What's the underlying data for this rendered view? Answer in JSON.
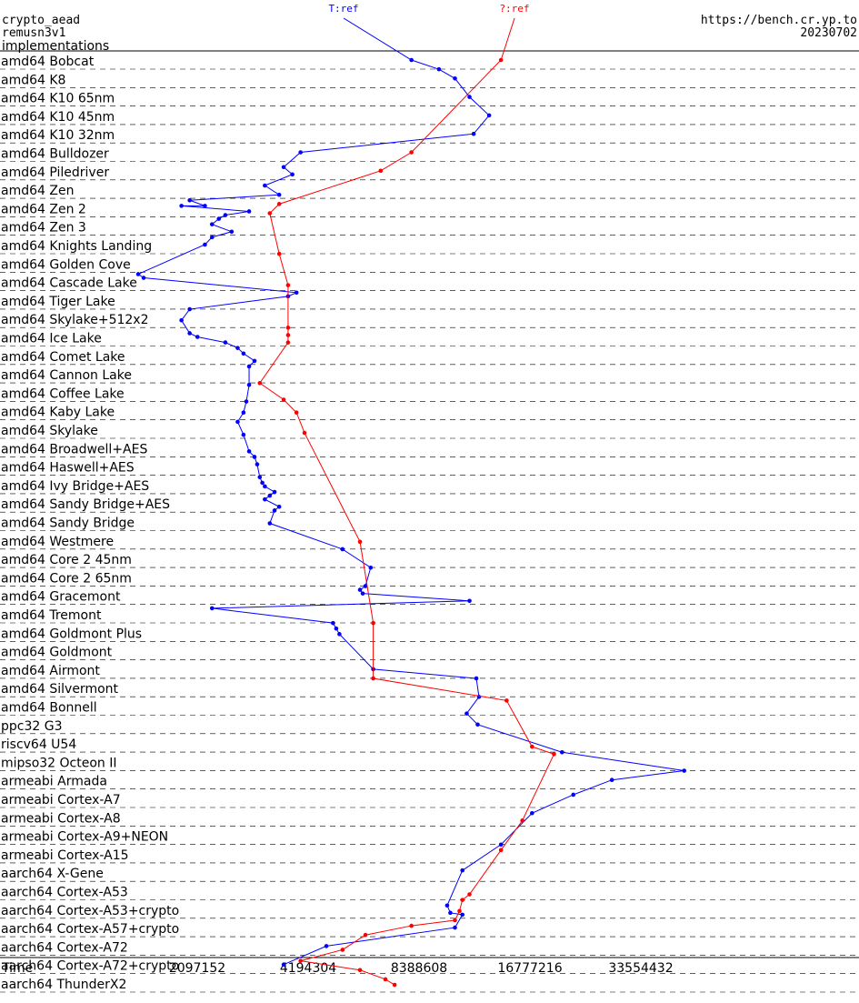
{
  "header": {
    "line1": "crypto_aead",
    "line2": "remusn3v1",
    "line3": "implementations",
    "url": "https://bench.cr.yp.to",
    "date": "20230702"
  },
  "chart_data": {
    "type": "line",
    "xlabel": "Time",
    "xscale": "log2",
    "xlim": [
      1048576,
      67108864
    ],
    "xticks": [
      2097152,
      4194304,
      8388608,
      16777216,
      33554432
    ],
    "series": [
      {
        "name": "T:ref",
        "color": "#0000ff"
      },
      {
        "name": "?:ref",
        "color": "#ff0000"
      }
    ],
    "categories": [
      "amd64 Bobcat",
      "amd64 K8",
      "amd64 K10 65nm",
      "amd64 K10 45nm",
      "amd64 K10 32nm",
      "amd64 Bulldozer",
      "amd64 Piledriver",
      "amd64 Zen",
      "amd64 Zen 2",
      "amd64 Zen 3",
      "amd64 Knights Landing",
      "amd64 Golden Cove",
      "amd64 Cascade Lake",
      "amd64 Tiger Lake",
      "amd64 Skylake+512x2",
      "amd64 Ice Lake",
      "amd64 Comet Lake",
      "amd64 Cannon Lake",
      "amd64 Coffee Lake",
      "amd64 Kaby Lake",
      "amd64 Skylake",
      "amd64 Broadwell+AES",
      "amd64 Haswell+AES",
      "amd64 Ivy Bridge+AES",
      "amd64 Sandy Bridge+AES",
      "amd64 Sandy Bridge",
      "amd64 Westmere",
      "amd64 Core 2 45nm",
      "amd64 Core 2 65nm",
      "amd64 Gracemont",
      "amd64 Tremont",
      "amd64 Goldmont Plus",
      "amd64 Goldmont",
      "amd64 Airmont",
      "amd64 Silvermont",
      "amd64 Bonnell",
      "ppc32 G3",
      "riscv64 U54",
      "mipso32 Octeon II",
      "armeabi Armada",
      "armeabi Cortex-A7",
      "armeabi Cortex-A8",
      "armeabi Cortex-A9+NEON",
      "armeabi Cortex-A15",
      "aarch64 X-Gene",
      "aarch64 Cortex-A53",
      "aarch64 Cortex-A53+crypto",
      "aarch64 Cortex-A57+crypto",
      "aarch64 Cortex-A72",
      "aarch64 Cortex-A72+crypto",
      "aarch64 ThunderX2"
    ],
    "blue_points": [
      [
        0,
        8000000
      ],
      [
        0.5,
        9500000
      ],
      [
        1,
        10500000
      ],
      [
        2,
        11500000
      ],
      [
        3,
        13000000
      ],
      [
        4,
        11800000
      ],
      [
        5,
        4000000
      ],
      [
        5.8,
        3600000
      ],
      [
        6.2,
        3800000
      ],
      [
        6.8,
        3200000
      ],
      [
        7.3,
        3500000
      ],
      [
        7.6,
        2000000
      ],
      [
        7.9,
        2200000
      ],
      [
        7.9,
        1900000
      ],
      [
        8.2,
        2900000
      ],
      [
        8.4,
        2500000
      ],
      [
        8.6,
        2400000
      ],
      [
        8.9,
        2300000
      ],
      [
        9.3,
        2600000
      ],
      [
        9.6,
        2300000
      ],
      [
        10,
        2200000
      ],
      [
        11.6,
        1450000
      ],
      [
        11.8,
        1500000
      ],
      [
        12.6,
        3900000
      ],
      [
        12.8,
        3700000
      ],
      [
        13.5,
        2000000
      ],
      [
        14.1,
        1900000
      ],
      [
        14.8,
        2000000
      ],
      [
        15,
        2100000
      ],
      [
        15.3,
        2500000
      ],
      [
        15.6,
        2700000
      ],
      [
        15.9,
        2800000
      ],
      [
        16.3,
        3000000
      ],
      [
        16.6,
        2900000
      ],
      [
        17.6,
        2900000
      ],
      [
        18.5,
        2850000
      ],
      [
        19.1,
        2800000
      ],
      [
        19.6,
        2700000
      ],
      [
        20.3,
        2800000
      ],
      [
        21.2,
        2900000
      ],
      [
        21.5,
        3000000
      ],
      [
        21.9,
        3050000
      ],
      [
        22.6,
        3100000
      ],
      [
        22.9,
        3150000
      ],
      [
        23.1,
        3200000
      ],
      [
        23.4,
        3400000
      ],
      [
        23.6,
        3300000
      ],
      [
        23.8,
        3200000
      ],
      [
        24.2,
        3500000
      ],
      [
        24.4,
        3400000
      ],
      [
        25.1,
        3300000
      ],
      [
        26.5,
        5200000
      ],
      [
        27.5,
        6200000
      ],
      [
        28.5,
        6000000
      ],
      [
        28.7,
        5800000
      ],
      [
        28.9,
        5900000
      ],
      [
        29.3,
        11500000
      ],
      [
        29.7,
        2300000
      ],
      [
        30.5,
        4900000
      ],
      [
        30.8,
        5000000
      ],
      [
        31.1,
        5100000
      ],
      [
        33,
        6300000
      ],
      [
        33.5,
        12000000
      ],
      [
        34.5,
        12200000
      ],
      [
        35.4,
        11300000
      ],
      [
        36,
        12100000
      ],
      [
        37.5,
        20500000
      ],
      [
        38.5,
        44000000
      ],
      [
        39,
        28000000
      ],
      [
        39.8,
        22000000
      ],
      [
        40.8,
        17000000
      ],
      [
        42.5,
        14000000
      ],
      [
        43.9,
        11000000
      ],
      [
        45.8,
        10000000
      ],
      [
        46.2,
        10200000
      ],
      [
        46.3,
        11000000
      ],
      [
        47,
        10500000
      ],
      [
        48,
        4700000
      ],
      [
        49,
        3600000
      ]
    ],
    "red_points": [
      [
        0,
        14000000
      ],
      [
        5,
        8000000
      ],
      [
        6,
        6600000
      ],
      [
        7.8,
        3500000
      ],
      [
        8.3,
        3300000
      ],
      [
        10.5,
        3500000
      ],
      [
        12.2,
        3700000
      ],
      [
        14.5,
        3700000
      ],
      [
        14.9,
        3700000
      ],
      [
        15.3,
        3700000
      ],
      [
        17.5,
        3100000
      ],
      [
        18.4,
        3600000
      ],
      [
        19.1,
        3900000
      ],
      [
        20.2,
        4100000
      ],
      [
        26.1,
        5800000
      ],
      [
        30.5,
        6300000
      ],
      [
        33.5,
        6300000
      ],
      [
        34.7,
        14500000
      ],
      [
        37.2,
        17000000
      ],
      [
        37.6,
        19500000
      ],
      [
        41.2,
        16000000
      ],
      [
        42.8,
        14000000
      ],
      [
        45.2,
        11500000
      ],
      [
        45.5,
        11000000
      ],
      [
        46.1,
        10800000
      ],
      [
        46.6,
        10500000
      ],
      [
        46.9,
        8000000
      ],
      [
        47.4,
        6000000
      ],
      [
        48.2,
        5200000
      ],
      [
        48.8,
        4000000
      ],
      [
        49.3,
        5800000
      ],
      [
        49.8,
        6800000
      ],
      [
        50.1,
        7200000
      ]
    ]
  }
}
